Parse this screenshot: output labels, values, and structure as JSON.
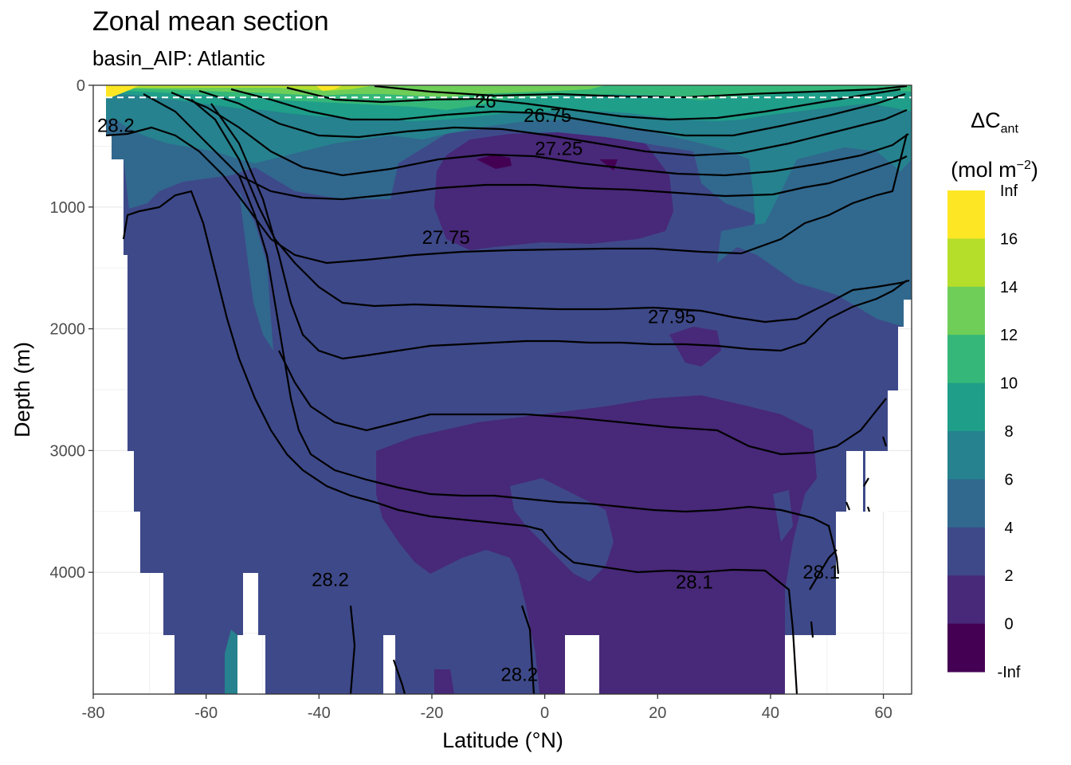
{
  "title": "Zonal mean section",
  "subtitle": "basin_AIP: Atlantic",
  "chart_data": {
    "type": "heatmap",
    "title": "Zonal mean section",
    "subtitle": "basin_AIP: Atlantic",
    "xlabel": "Latitude (°N)",
    "ylabel": "Depth (m)",
    "xlim": [
      -80,
      65
    ],
    "ylim": [
      0,
      5000
    ],
    "y_reversed": true,
    "x_ticks": [
      "-80",
      "-60",
      "-40",
      "-20",
      "0",
      "20",
      "40",
      "60"
    ],
    "y_ticks": [
      "0",
      "1000",
      "2000",
      "3000",
      "4000"
    ],
    "grid": true,
    "reference_line_depth": 100,
    "legend": {
      "title_main": "ΔC",
      "title_sub": "ant",
      "unit_main": "(mol m",
      "unit_sup": "−2",
      "unit_close": ")",
      "placement": "right",
      "labels": [
        "Inf",
        "16",
        "14",
        "12",
        "10",
        "8",
        "6",
        "4",
        "2",
        "0",
        "-Inf"
      ],
      "colors": [
        "#fde725",
        "#b5de2b",
        "#6ece58",
        "#35b779",
        "#1f9e89",
        "#26828e",
        "#31688e",
        "#3e4989",
        "#482878",
        "#440154"
      ]
    },
    "contour_labels": [
      {
        "text": "26",
        "lat": -10.5,
        "depth": 130
      },
      {
        "text": "26.75",
        "lat": 0.5,
        "depth": 250
      },
      {
        "text": "27.25",
        "lat": 2.5,
        "depth": 520
      },
      {
        "text": "27.75",
        "lat": -17.5,
        "depth": 1250
      },
      {
        "text": "27.95",
        "lat": 22.5,
        "depth": 1900
      },
      {
        "text": "28.2",
        "lat": -38,
        "depth": 4060
      },
      {
        "text": "28.1",
        "lat": 26.5,
        "depth": 4080
      },
      {
        "text": "28.1",
        "lat": 49,
        "depth": 4000
      },
      {
        "text": "28.2",
        "lat": -4.5,
        "depth": 4840
      },
      {
        "text": "28.2",
        "lat": -76,
        "depth": 330
      }
    ]
  }
}
